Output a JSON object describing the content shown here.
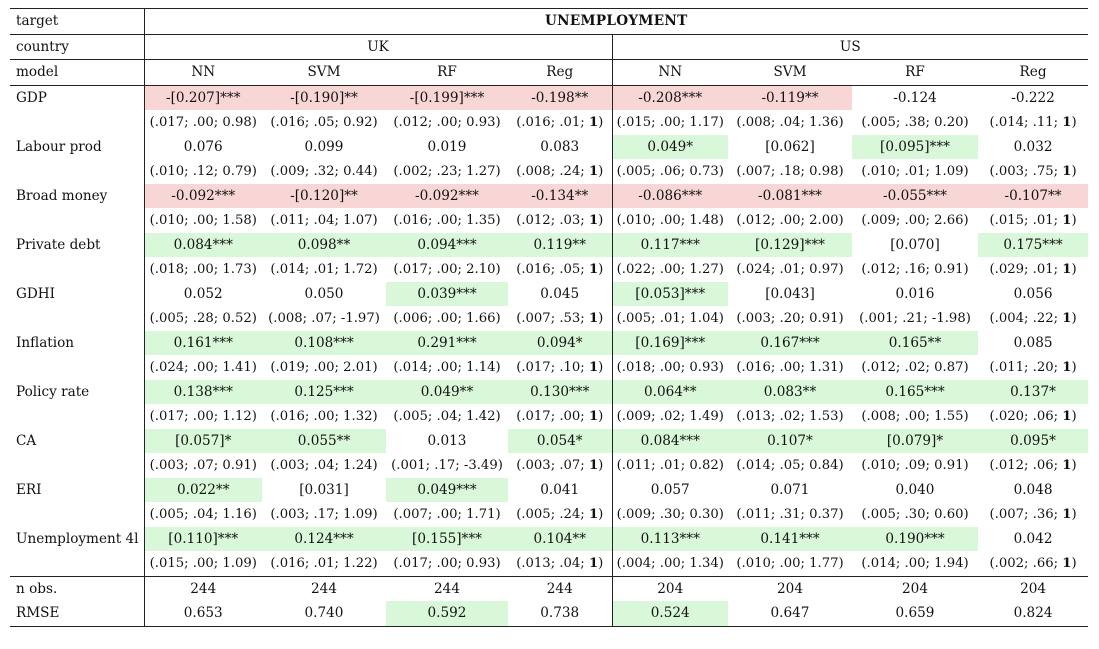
{
  "header": {
    "target_label": "target",
    "target_value": "UNEMPLOYMENT",
    "country_label": "country",
    "countries": [
      "UK",
      "US"
    ],
    "model_label": "model",
    "models": [
      "NN",
      "SVM",
      "RF",
      "Reg",
      "NN",
      "SVM",
      "RF",
      "Reg"
    ]
  },
  "colors": {
    "positive": "#d9f7d9",
    "negative": "#f8d6d6"
  },
  "variables": [
    {
      "name": "GDP",
      "coef": [
        {
          "v": "-[0.207]***",
          "c": "neg"
        },
        {
          "v": "-[0.190]**",
          "c": "neg"
        },
        {
          "v": "-[0.199]***",
          "c": "neg"
        },
        {
          "v": "-0.198**",
          "c": "neg"
        },
        {
          "v": "-0.208***",
          "c": "neg"
        },
        {
          "v": "-0.119**",
          "c": "neg"
        },
        {
          "v": "-0.124",
          "c": ""
        },
        {
          "v": "-0.222",
          "c": ""
        }
      ],
      "stats": [
        "(.017; .00; 0.98)",
        "(.016; .05; 0.92)",
        "(.012; .00; 0.93)",
        "(.016; .01; 1)",
        "(.015; .00; 1.17)",
        "(.008; .04; 1.36)",
        "(.005; .38; 0.20)",
        "(.014; .11; 1)"
      ]
    },
    {
      "name": "Labour prod",
      "coef": [
        {
          "v": "0.076",
          "c": ""
        },
        {
          "v": "0.099",
          "c": ""
        },
        {
          "v": "0.019",
          "c": ""
        },
        {
          "v": "0.083",
          "c": ""
        },
        {
          "v": "0.049*",
          "c": "pos"
        },
        {
          "v": "[0.062]",
          "c": ""
        },
        {
          "v": "[0.095]***",
          "c": "pos"
        },
        {
          "v": "0.032",
          "c": ""
        }
      ],
      "stats": [
        "(.010; .12; 0.79)",
        "(.009; .32; 0.44)",
        "(.002; .23; 1.27)",
        "(.008; .24; 1)",
        "(.005; .06; 0.73)",
        "(.007; .18; 0.98)",
        "(.010; .01; 1.09)",
        "(.003; .75; 1)"
      ]
    },
    {
      "name": "Broad money",
      "coef": [
        {
          "v": "-0.092***",
          "c": "neg"
        },
        {
          "v": "-[0.120]**",
          "c": "neg"
        },
        {
          "v": "-0.092***",
          "c": "neg"
        },
        {
          "v": "-0.134**",
          "c": "neg"
        },
        {
          "v": "-0.086***",
          "c": "neg"
        },
        {
          "v": "-0.081***",
          "c": "neg"
        },
        {
          "v": "-0.055***",
          "c": "neg"
        },
        {
          "v": "-0.107**",
          "c": "neg"
        }
      ],
      "stats": [
        "(.010; .00; 1.58)",
        "(.011; .04; 1.07)",
        "(.016; .00; 1.35)",
        "(.012; .03; 1)",
        "(.010; .00; 1.48)",
        "(.012; .00; 2.00)",
        "(.009; .00; 2.66)",
        "(.015; .01; 1)"
      ]
    },
    {
      "name": "Private debt",
      "coef": [
        {
          "v": "0.084***",
          "c": "pos"
        },
        {
          "v": "0.098**",
          "c": "pos"
        },
        {
          "v": "0.094***",
          "c": "pos"
        },
        {
          "v": "0.119**",
          "c": "pos"
        },
        {
          "v": "0.117***",
          "c": "pos"
        },
        {
          "v": "[0.129]***",
          "c": "pos"
        },
        {
          "v": "[0.070]",
          "c": ""
        },
        {
          "v": "0.175***",
          "c": "pos"
        }
      ],
      "stats": [
        "(.018; .00; 1.73)",
        "(.014; .01; 1.72)",
        "(.017; .00; 2.10)",
        "(.016; .05; 1)",
        "(.022; .00; 1.27)",
        "(.024; .01; 0.97)",
        "(.012; .16; 0.91)",
        "(.029; .01; 1)"
      ]
    },
    {
      "name": "GDHI",
      "coef": [
        {
          "v": "0.052",
          "c": ""
        },
        {
          "v": "0.050",
          "c": ""
        },
        {
          "v": "0.039***",
          "c": "pos"
        },
        {
          "v": "0.045",
          "c": ""
        },
        {
          "v": "[0.053]***",
          "c": "pos"
        },
        {
          "v": "[0.043]",
          "c": ""
        },
        {
          "v": "0.016",
          "c": ""
        },
        {
          "v": "0.056",
          "c": ""
        }
      ],
      "stats": [
        "(.005; .28; 0.52)",
        "(.008; .07; -1.97)",
        "(.006; .00; 1.66)",
        "(.007; .53; 1)",
        "(.005; .01; 1.04)",
        "(.003; .20; 0.91)",
        "(.001; .21; -1.98)",
        "(.004; .22; 1)"
      ]
    },
    {
      "name": "Inflation",
      "coef": [
        {
          "v": "0.161***",
          "c": "pos"
        },
        {
          "v": "0.108***",
          "c": "pos"
        },
        {
          "v": "0.291***",
          "c": "pos"
        },
        {
          "v": "0.094*",
          "c": "pos"
        },
        {
          "v": "[0.169]***",
          "c": "pos"
        },
        {
          "v": "0.167***",
          "c": "pos"
        },
        {
          "v": "0.165**",
          "c": "pos"
        },
        {
          "v": "0.085",
          "c": ""
        }
      ],
      "stats": [
        "(.024; .00; 1.41)",
        "(.019; .00; 2.01)",
        "(.014; .00; 1.14)",
        "(.017; .10; 1)",
        "(.018; .00; 0.93)",
        "(.016; .00; 1.31)",
        "(.012; .02; 0.87)",
        "(.011; .20; 1)"
      ]
    },
    {
      "name": "Policy rate",
      "coef": [
        {
          "v": "0.138***",
          "c": "pos"
        },
        {
          "v": "0.125***",
          "c": "pos"
        },
        {
          "v": "0.049**",
          "c": "pos"
        },
        {
          "v": "0.130***",
          "c": "pos"
        },
        {
          "v": "0.064**",
          "c": "pos"
        },
        {
          "v": "0.083**",
          "c": "pos"
        },
        {
          "v": "0.165***",
          "c": "pos"
        },
        {
          "v": "0.137*",
          "c": "pos"
        }
      ],
      "stats": [
        "(.017; .00; 1.12)",
        "(.016; .00; 1.32)",
        "(.005; .04; 1.42)",
        "(.017; .00; 1)",
        "(.009; .02; 1.49)",
        "(.013; .02; 1.53)",
        "(.008; .00; 1.55)",
        "(.020; .06; 1)"
      ]
    },
    {
      "name": "CA",
      "coef": [
        {
          "v": "[0.057]*",
          "c": "pos"
        },
        {
          "v": "0.055**",
          "c": "pos"
        },
        {
          "v": "0.013",
          "c": ""
        },
        {
          "v": "0.054*",
          "c": "pos"
        },
        {
          "v": "0.084***",
          "c": "pos"
        },
        {
          "v": "0.107*",
          "c": "pos"
        },
        {
          "v": "[0.079]*",
          "c": "pos"
        },
        {
          "v": "0.095*",
          "c": "pos"
        }
      ],
      "stats": [
        "(.003; .07; 0.91)",
        "(.003; .04; 1.24)",
        "(.001; .17; -3.49)",
        "(.003; .07; 1)",
        "(.011; .01; 0.82)",
        "(.014; .05; 0.84)",
        "(.010; .09; 0.91)",
        "(.012; .06; 1)"
      ]
    },
    {
      "name": "ERI",
      "coef": [
        {
          "v": "0.022**",
          "c": "pos"
        },
        {
          "v": "[0.031]",
          "c": ""
        },
        {
          "v": "0.049***",
          "c": "pos"
        },
        {
          "v": "0.041",
          "c": ""
        },
        {
          "v": "0.057",
          "c": ""
        },
        {
          "v": "0.071",
          "c": ""
        },
        {
          "v": "0.040",
          "c": ""
        },
        {
          "v": "0.048",
          "c": ""
        }
      ],
      "stats": [
        "(.005; .04; 1.16)",
        "(.003; .17; 1.09)",
        "(.007; .00; 1.71)",
        "(.005; .24; 1)",
        "(.009; .30; 0.30)",
        "(.011; .31; 0.37)",
        "(.005; .30; 0.60)",
        "(.007; .36; 1)"
      ]
    },
    {
      "name": "Unemployment 4l",
      "coef": [
        {
          "v": "[0.110]***",
          "c": "pos"
        },
        {
          "v": "0.124***",
          "c": "pos"
        },
        {
          "v": "[0.155]***",
          "c": "pos"
        },
        {
          "v": "0.104**",
          "c": "pos"
        },
        {
          "v": "0.113***",
          "c": "pos"
        },
        {
          "v": "0.141***",
          "c": "pos"
        },
        {
          "v": "0.190***",
          "c": "pos"
        },
        {
          "v": "0.042",
          "c": ""
        }
      ],
      "stats": [
        "(.015; .00; 1.09)",
        "(.016; .01; 1.22)",
        "(.017; .00; 0.93)",
        "(.013; .04; 1)",
        "(.004; .00; 1.34)",
        "(.010; .00; 1.77)",
        "(.014; .00; 1.94)",
        "(.002; .66; 1)"
      ]
    }
  ],
  "footer": [
    {
      "name": "n obs.",
      "cells": [
        {
          "v": "244",
          "c": ""
        },
        {
          "v": "244",
          "c": ""
        },
        {
          "v": "244",
          "c": ""
        },
        {
          "v": "244",
          "c": ""
        },
        {
          "v": "204",
          "c": ""
        },
        {
          "v": "204",
          "c": ""
        },
        {
          "v": "204",
          "c": ""
        },
        {
          "v": "204",
          "c": ""
        }
      ]
    },
    {
      "name": "RMSE",
      "cells": [
        {
          "v": "0.653",
          "c": ""
        },
        {
          "v": "0.740",
          "c": ""
        },
        {
          "v": "0.592",
          "c": "pos"
        },
        {
          "v": "0.738",
          "c": ""
        },
        {
          "v": "0.524",
          "c": "pos"
        },
        {
          "v": "0.647",
          "c": ""
        },
        {
          "v": "0.659",
          "c": ""
        },
        {
          "v": "0.824",
          "c": ""
        }
      ]
    }
  ]
}
